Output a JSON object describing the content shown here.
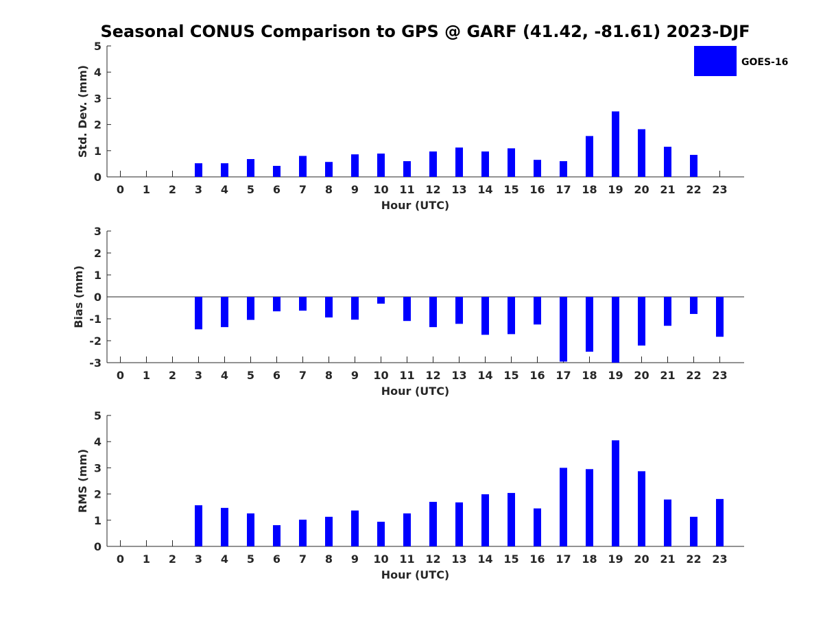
{
  "title": "Seasonal CONUS Comparison to GPS @ GARF (41.42, -81.61) 2023-DJF",
  "legend": {
    "label": "GOES-16",
    "color": "#0000ff"
  },
  "chart_data": [
    {
      "type": "bar",
      "xlabel": "Hour (UTC)",
      "ylabel": "Std. Dev. (mm)",
      "ylim": [
        0,
        5
      ],
      "yticks": [
        0,
        1,
        2,
        3,
        4,
        5
      ],
      "categories": [
        "0",
        "1",
        "2",
        "3",
        "4",
        "5",
        "6",
        "7",
        "8",
        "9",
        "10",
        "11",
        "12",
        "13",
        "14",
        "15",
        "16",
        "17",
        "18",
        "19",
        "20",
        "21",
        "22",
        "23"
      ],
      "series": [
        {
          "name": "GOES-16",
          "values": [
            null,
            null,
            null,
            0.52,
            0.52,
            0.68,
            0.42,
            0.8,
            0.57,
            0.86,
            0.89,
            0.6,
            0.97,
            1.12,
            0.97,
            1.09,
            0.65,
            0.6,
            1.56,
            2.5,
            1.82,
            1.15,
            0.84,
            null
          ]
        }
      ]
    },
    {
      "type": "bar",
      "xlabel": "Hour (UTC)",
      "ylabel": "Bias (mm)",
      "ylim": [
        -3,
        3
      ],
      "yticks": [
        -3,
        -2,
        -1,
        0,
        1,
        2,
        3
      ],
      "categories": [
        "0",
        "1",
        "2",
        "3",
        "4",
        "5",
        "6",
        "7",
        "8",
        "9",
        "10",
        "11",
        "12",
        "13",
        "14",
        "15",
        "16",
        "17",
        "18",
        "19",
        "20",
        "21",
        "22",
        "23"
      ],
      "series": [
        {
          "name": "GOES-16",
          "values": [
            null,
            null,
            null,
            -1.48,
            -1.38,
            -1.05,
            -0.66,
            -0.63,
            -0.94,
            -1.04,
            -0.31,
            -1.1,
            -1.38,
            -1.23,
            -1.73,
            -1.7,
            -1.26,
            -2.95,
            -2.5,
            -3.0,
            -2.22,
            -1.32,
            -0.78,
            -1.82
          ]
        }
      ]
    },
    {
      "type": "bar",
      "xlabel": "Hour (UTC)",
      "ylabel": "RMS (mm)",
      "ylim": [
        0,
        5
      ],
      "yticks": [
        0,
        1,
        2,
        3,
        4,
        5
      ],
      "categories": [
        "0",
        "1",
        "2",
        "3",
        "4",
        "5",
        "6",
        "7",
        "8",
        "9",
        "10",
        "11",
        "12",
        "13",
        "14",
        "15",
        "16",
        "17",
        "18",
        "19",
        "20",
        "21",
        "22",
        "23"
      ],
      "series": [
        {
          "name": "GOES-16",
          "values": [
            null,
            null,
            null,
            1.57,
            1.47,
            1.26,
            0.81,
            1.02,
            1.13,
            1.37,
            0.94,
            1.26,
            1.7,
            1.68,
            1.99,
            2.04,
            1.45,
            3.0,
            2.95,
            4.05,
            2.87,
            1.79,
            1.13,
            1.81
          ]
        }
      ]
    }
  ]
}
